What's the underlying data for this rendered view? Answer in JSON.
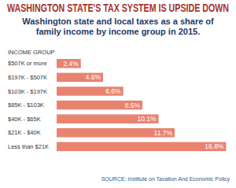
{
  "chart_data": {
    "type": "bar",
    "orientation": "horizontal",
    "title": "WASHINGTON STATE'S TAX SYSTEM IS UPSIDE DOWN",
    "subtitle": "Washington state and local taxes as a share of family income by income group in 2015.",
    "ylabel": "INCOME GROUP",
    "categories": [
      "$507K or more",
      "$197K - $507K",
      "$103K - $197K",
      "$65K - $103K",
      "$40K - $65K",
      "$21K - $40K",
      "Less than $21K"
    ],
    "values": [
      2.4,
      4.6,
      6.6,
      8.5,
      10.1,
      11.7,
      16.8
    ],
    "value_labels": [
      "2.4%",
      "4.6%",
      "6.6%",
      "8.5%",
      "10.1%",
      "11.7%",
      "16.8%"
    ],
    "color": "#e8836f",
    "xlim": [
      0,
      17
    ],
    "data_labels": true,
    "tick_labels": "y",
    "grid": false,
    "source": "SOURCE: Institute on Taxation And Economic Policy"
  }
}
